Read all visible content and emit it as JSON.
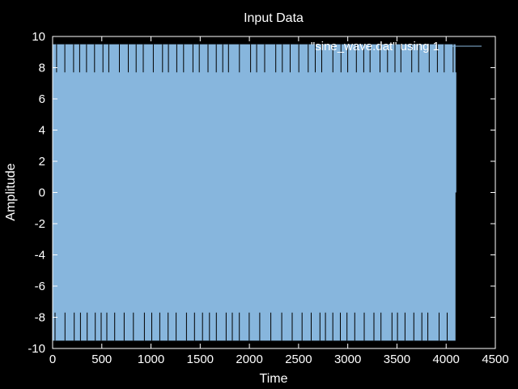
{
  "chart_data": {
    "type": "line",
    "title": "Input Data",
    "xlabel": "Time",
    "ylabel": "Amplitude",
    "xlim": [
      0,
      4500
    ],
    "ylim": [
      -10,
      10
    ],
    "x_ticks": [
      0,
      500,
      1000,
      1500,
      2000,
      2500,
      3000,
      3500,
      4000,
      4500
    ],
    "y_ticks": [
      -10,
      -8,
      -6,
      -4,
      -2,
      0,
      2,
      4,
      6,
      8,
      10
    ],
    "grid": false,
    "legend_position": "top-right",
    "series": [
      {
        "name": "\"sine_wave.dat\" using 1",
        "color": "#87b6dd",
        "x_range": [
          0,
          4095
        ],
        "envelope": [
          -9.5,
          9.5
        ],
        "inner_band": [
          -7.7,
          7.7
        ],
        "final_value": 0
      }
    ]
  },
  "colors": {
    "background": "#000000",
    "foreground": "#ffffff",
    "series_fill": "#87b6dd"
  }
}
